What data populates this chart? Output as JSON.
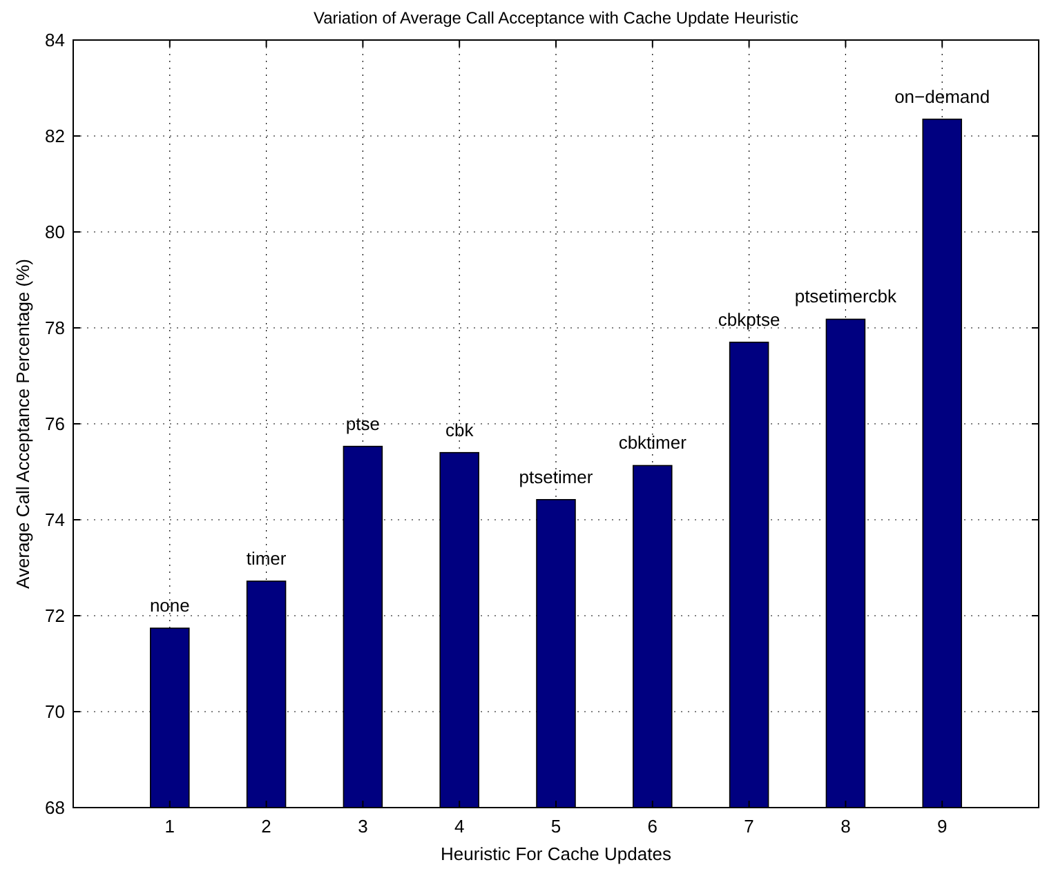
{
  "chart_data": {
    "type": "bar",
    "title": "Variation of Average Call Acceptance with Cache Update Heuristic",
    "xlabel": "Heuristic For Cache Updates",
    "ylabel": "Average Call Acceptance Percentage (%)",
    "categories": [
      "1",
      "2",
      "3",
      "4",
      "5",
      "6",
      "7",
      "8",
      "9"
    ],
    "values": [
      71.74,
      72.72,
      75.53,
      75.4,
      74.42,
      75.13,
      77.7,
      78.18,
      82.35
    ],
    "color": "#000080",
    "ylim": [
      68,
      84
    ],
    "yticks": [
      68,
      70,
      72,
      74,
      76,
      78,
      80,
      82,
      84
    ],
    "grid": true,
    "annotations": [
      {
        "text": "none",
        "x": "1",
        "y": 71.74
      },
      {
        "text": "timer",
        "x": "2",
        "y": 72.72
      },
      {
        "text": "ptse",
        "x": "3",
        "y": 75.53
      },
      {
        "text": "cbk",
        "x": "4",
        "y": 75.4
      },
      {
        "text": "ptsetimer",
        "x": "5",
        "y": 74.42
      },
      {
        "text": "cbktimer",
        "x": "6",
        "y": 75.13
      },
      {
        "text": "cbkptse",
        "x": "7",
        "y": 77.7
      },
      {
        "text": "ptsetimercbk",
        "x": "8",
        "y": 78.18
      },
      {
        "text": "on−demand",
        "x": "9",
        "y": 82.35
      }
    ]
  }
}
